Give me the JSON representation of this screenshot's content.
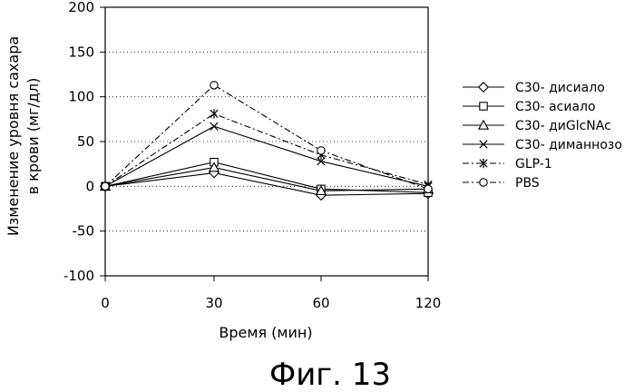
{
  "chart_data": {
    "type": "line",
    "x": [
      0,
      30,
      60,
      120
    ],
    "x_tick_labels": [
      "0",
      "30",
      "60",
      "120"
    ],
    "xlabel": "Время (мин)",
    "ylabel_lines": [
      "Изменение уровня сахара",
      "в крови (мг/дл)"
    ],
    "ylim": [
      -100,
      200
    ],
    "y_ticks": [
      200,
      150,
      100,
      50,
      0,
      -50,
      -100
    ],
    "grid": "horizontal dotted",
    "legend_position": "right",
    "series": [
      {
        "name": "C30- дисиало",
        "marker": "diamond",
        "dash": "solid",
        "values": [
          0,
          15,
          -10,
          -8
        ]
      },
      {
        "name": "C30- асиало",
        "marker": "square",
        "dash": "solid",
        "values": [
          0,
          27,
          -3,
          -7
        ]
      },
      {
        "name": "C30- диGlcNAc",
        "marker": "triangle",
        "dash": "solid",
        "values": [
          0,
          21,
          -5,
          -3
        ]
      },
      {
        "name": "C30- диманнозо",
        "marker": "x",
        "dash": "solid",
        "values": [
          0,
          67,
          28,
          0
        ]
      },
      {
        "name": "GLP-1",
        "marker": "star",
        "dash": "dashdot",
        "values": [
          0,
          81,
          35,
          2
        ]
      },
      {
        "name": "PBS",
        "marker": "circle",
        "dash": "dashdot",
        "values": [
          0,
          113,
          40,
          -3
        ]
      }
    ]
  },
  "caption": "Фиг. 13"
}
